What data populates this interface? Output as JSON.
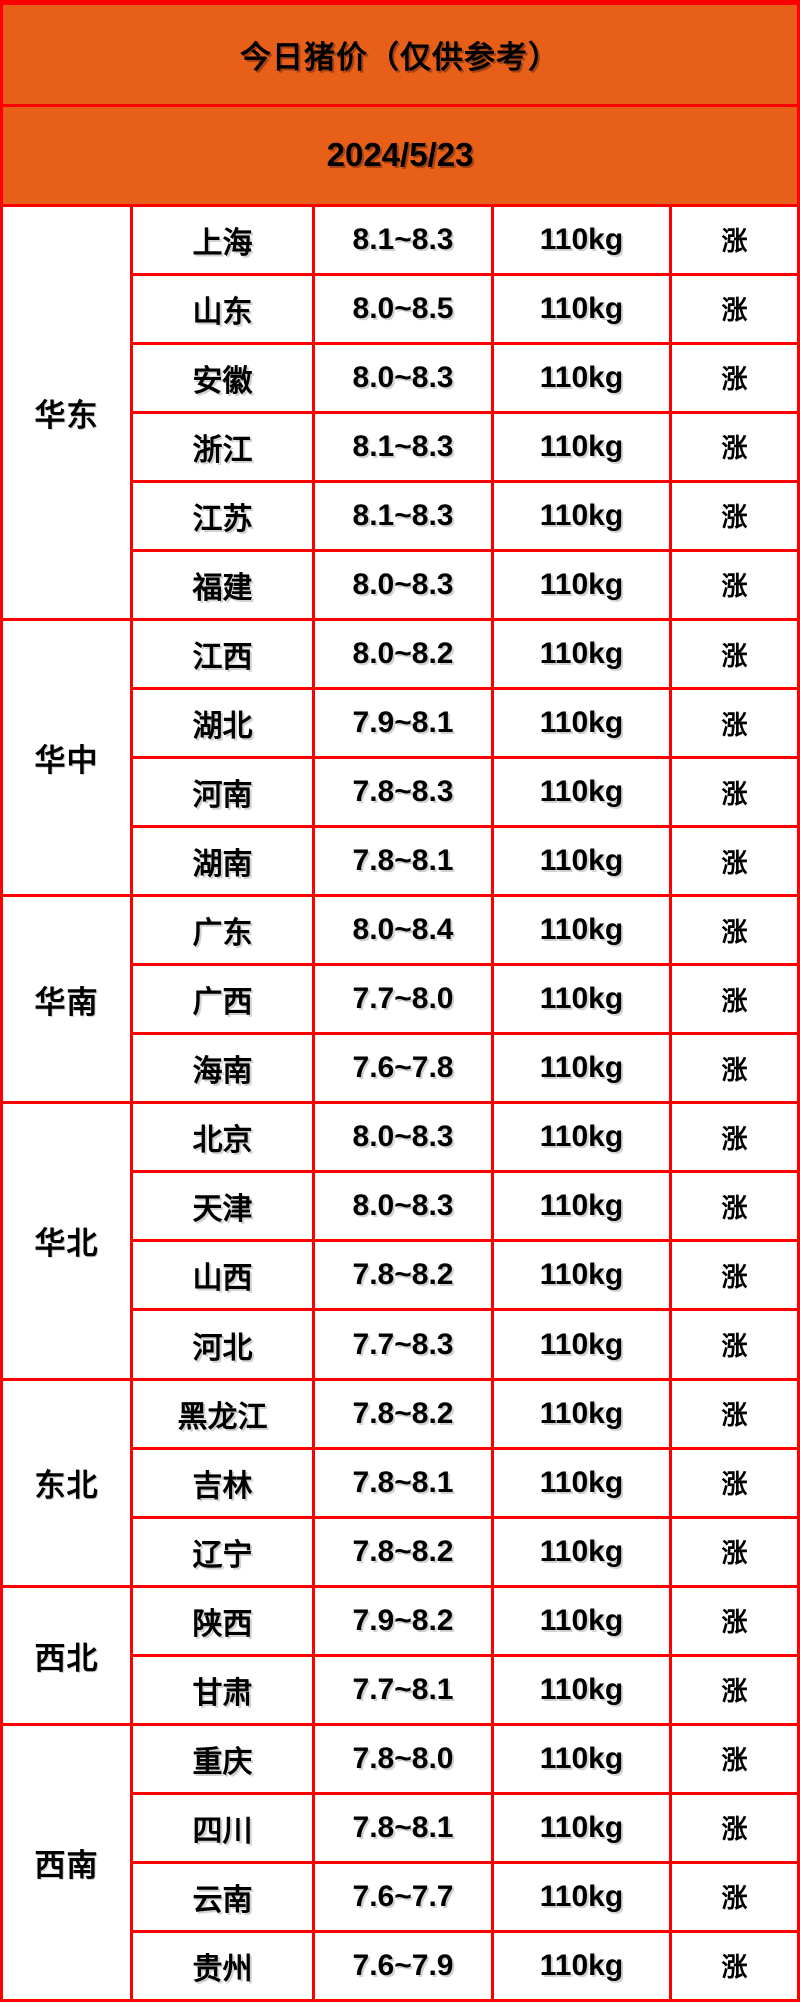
{
  "header": {
    "title": "今日猪价（仅供参考）",
    "date": "2024/5/23"
  },
  "colors": {
    "header_bg": "#e85f1a",
    "border": "#ff0000",
    "cell_bg": "#ffffff",
    "text": "#000000",
    "status_up": "#f93c55"
  },
  "chart_data": {
    "type": "table",
    "title": "今日猪价（仅供参考）",
    "date": "2024/5/23",
    "unit_weight": "110kg",
    "regions": [
      {
        "name": "华东",
        "rows": [
          {
            "province": "上海",
            "price": "8.1~8.3",
            "weight": "110kg",
            "status": "涨"
          },
          {
            "province": "山东",
            "price": "8.0~8.5",
            "weight": "110kg",
            "status": "涨"
          },
          {
            "province": "安徽",
            "price": "8.0~8.3",
            "weight": "110kg",
            "status": "涨"
          },
          {
            "province": "浙江",
            "price": "8.1~8.3",
            "weight": "110kg",
            "status": "涨"
          },
          {
            "province": "江苏",
            "price": "8.1~8.3",
            "weight": "110kg",
            "status": "涨"
          },
          {
            "province": "福建",
            "price": "8.0~8.3",
            "weight": "110kg",
            "status": "涨"
          }
        ]
      },
      {
        "name": "华中",
        "rows": [
          {
            "province": "江西",
            "price": "8.0~8.2",
            "weight": "110kg",
            "status": "涨"
          },
          {
            "province": "湖北",
            "price": "7.9~8.1",
            "weight": "110kg",
            "status": "涨"
          },
          {
            "province": "河南",
            "price": "7.8~8.3",
            "weight": "110kg",
            "status": "涨"
          },
          {
            "province": "湖南",
            "price": "7.8~8.1",
            "weight": "110kg",
            "status": "涨"
          }
        ]
      },
      {
        "name": "华南",
        "rows": [
          {
            "province": "广东",
            "price": "8.0~8.4",
            "weight": "110kg",
            "status": "涨"
          },
          {
            "province": "广西",
            "price": "7.7~8.0",
            "weight": "110kg",
            "status": "涨"
          },
          {
            "province": "海南",
            "price": "7.6~7.8",
            "weight": "110kg",
            "status": "涨"
          }
        ]
      },
      {
        "name": "华北",
        "rows": [
          {
            "province": "北京",
            "price": "8.0~8.3",
            "weight": "110kg",
            "status": "涨"
          },
          {
            "province": "天津",
            "price": "8.0~8.3",
            "weight": "110kg",
            "status": "涨"
          },
          {
            "province": "山西",
            "price": "7.8~8.2",
            "weight": "110kg",
            "status": "涨"
          },
          {
            "province": "河北",
            "price": "7.7~8.3",
            "weight": "110kg",
            "status": "涨"
          }
        ]
      },
      {
        "name": "东北",
        "rows": [
          {
            "province": "黑龙江",
            "price": "7.8~8.2",
            "weight": "110kg",
            "status": "涨"
          },
          {
            "province": "吉林",
            "price": "7.8~8.1",
            "weight": "110kg",
            "status": "涨"
          },
          {
            "province": "辽宁",
            "price": "7.8~8.2",
            "weight": "110kg",
            "status": "涨"
          }
        ]
      },
      {
        "name": "西北",
        "rows": [
          {
            "province": "陕西",
            "price": "7.9~8.2",
            "weight": "110kg",
            "status": "涨"
          },
          {
            "province": "甘肃",
            "price": "7.7~8.1",
            "weight": "110kg",
            "status": "涨"
          }
        ]
      },
      {
        "name": "西南",
        "rows": [
          {
            "province": "重庆",
            "price": "7.8~8.0",
            "weight": "110kg",
            "status": "涨"
          },
          {
            "province": "四川",
            "price": "7.8~8.1",
            "weight": "110kg",
            "status": "涨"
          },
          {
            "province": "云南",
            "price": "7.6~7.7",
            "weight": "110kg",
            "status": "涨"
          },
          {
            "province": "贵州",
            "price": "7.6~7.9",
            "weight": "110kg",
            "status": "涨"
          }
        ]
      }
    ]
  }
}
